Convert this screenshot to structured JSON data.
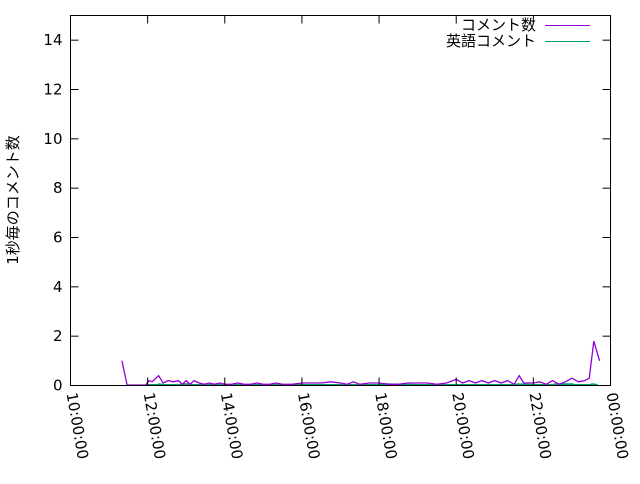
{
  "chart_data": {
    "type": "line",
    "title": "",
    "xlabel": "",
    "ylabel": "1秒毎のコメント数",
    "xlim": [
      "10:00:00",
      "00:00:00"
    ],
    "ylim": [
      0,
      15
    ],
    "x_ticks": [
      "10:00:00",
      "12:00:00",
      "14:00:00",
      "16:00:00",
      "18:00:00",
      "20:00:00",
      "22:00:00",
      "00:00:00"
    ],
    "y_ticks": [
      "0",
      "2",
      "4",
      "6",
      "8",
      "10",
      "12",
      "14"
    ],
    "grid": false,
    "legend_position": "top-right",
    "series": [
      {
        "name": "コメント数",
        "color": "#9400d3",
        "x": [
          "11:20",
          "11:28",
          "11:57",
          "12:02",
          "12:07",
          "12:17",
          "12:24",
          "12:32",
          "12:40",
          "12:48",
          "12:54",
          "13:00",
          "13:06",
          "13:12",
          "13:20",
          "13:28",
          "13:36",
          "13:44",
          "13:52",
          "14:00",
          "14:10",
          "14:20",
          "14:30",
          "14:40",
          "14:50",
          "15:00",
          "15:10",
          "15:20",
          "15:30",
          "15:45",
          "16:00",
          "16:15",
          "16:30",
          "16:45",
          "17:00",
          "17:10",
          "17:20",
          "17:30",
          "17:45",
          "18:00",
          "18:15",
          "18:30",
          "18:45",
          "19:00",
          "19:15",
          "19:30",
          "19:45",
          "20:00",
          "20:10",
          "20:20",
          "20:30",
          "20:40",
          "20:50",
          "21:00",
          "21:10",
          "21:20",
          "21:30",
          "21:38",
          "21:45",
          "22:00",
          "22:10",
          "22:20",
          "22:30",
          "22:40",
          "22:50",
          "23:00",
          "23:10",
          "23:20",
          "23:27",
          "23:34",
          "23:43"
        ],
        "y": [
          1.0,
          0,
          0,
          0.2,
          0.15,
          0.4,
          0.1,
          0.2,
          0.15,
          0.2,
          0.05,
          0.2,
          0.05,
          0.2,
          0.1,
          0.05,
          0.1,
          0.05,
          0.1,
          0.05,
          0.05,
          0.1,
          0.05,
          0.05,
          0.1,
          0.05,
          0.05,
          0.1,
          0.05,
          0.05,
          0.1,
          0.1,
          0.1,
          0.15,
          0.1,
          0.05,
          0.15,
          0.05,
          0.1,
          0.1,
          0.05,
          0.05,
          0.1,
          0.1,
          0.1,
          0.05,
          0.1,
          0.25,
          0.1,
          0.2,
          0.1,
          0.2,
          0.1,
          0.2,
          0.1,
          0.2,
          0.05,
          0.4,
          0.1,
          0.1,
          0.15,
          0.05,
          0.2,
          0.05,
          0.15,
          0.3,
          0.15,
          0.2,
          0.3,
          1.8,
          1.0
        ]
      },
      {
        "name": "英語コメント",
        "color": "#009e73",
        "x": [
          "11:57",
          "12:15",
          "12:18",
          "12:25",
          "12:50",
          "12:55",
          "13:05",
          "13:10",
          "14:00",
          "15:00",
          "16:00",
          "17:00",
          "18:00",
          "18:10",
          "19:00",
          "20:00",
          "21:00",
          "21:30",
          "21:36",
          "22:00",
          "22:30",
          "22:34",
          "23:00",
          "23:05",
          "23:28",
          "23:32",
          "23:40"
        ],
        "y": [
          0,
          0,
          0.05,
          0,
          0,
          0.05,
          0.05,
          0,
          0,
          0,
          0,
          0,
          0,
          0.05,
          0,
          0,
          0,
          0,
          0.05,
          0,
          0,
          0.05,
          0.05,
          0,
          0,
          0.05,
          0
        ]
      }
    ]
  }
}
